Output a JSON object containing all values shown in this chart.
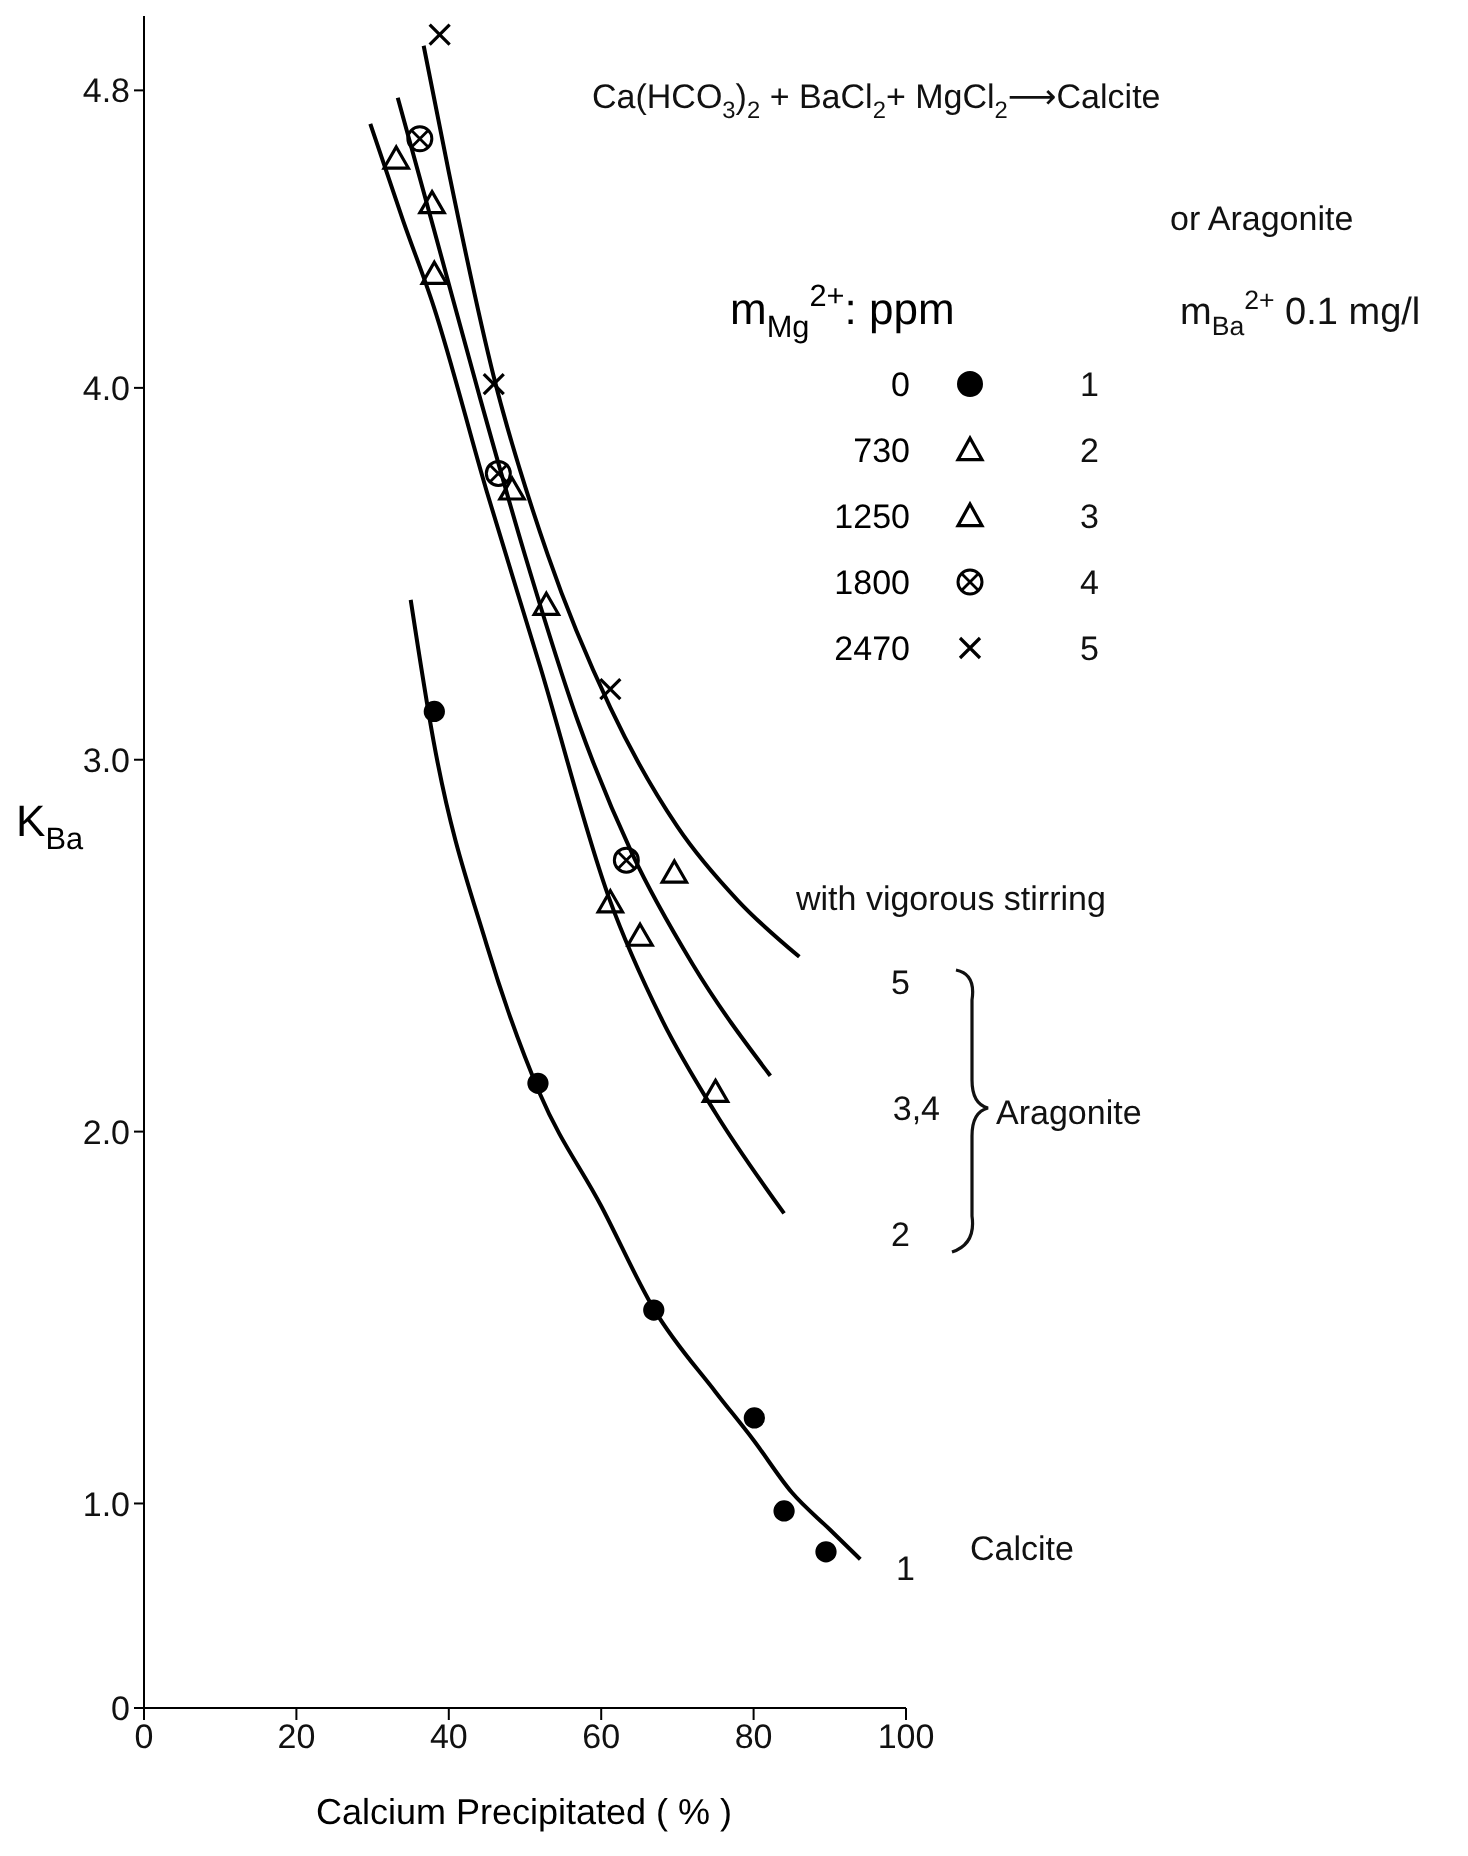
{
  "chart_data": {
    "type": "scatter",
    "xlabel": "Calcium Precipitated ( % )",
    "ylabel": "K$_{Ba}$",
    "legend_title": "m$_{Mg}$$^{2+}$: ppm",
    "xlim": [
      0,
      100
    ],
    "xticks": [
      0,
      20,
      40,
      60,
      80,
      100
    ],
    "ylim": [
      0.45,
      5.0
    ],
    "yticks": [
      {
        "value": 0.45,
        "label": "0"
      },
      {
        "value": 1,
        "label": "1.0"
      },
      {
        "value": 2,
        "label": "2.0"
      },
      {
        "value": 3,
        "label": "3.0"
      },
      {
        "value": 4,
        "label": "4.0"
      },
      4.8
    ],
    "legend": "top right",
    "series": [
      {
        "name": "0",
        "marker": "circle",
        "color": "#000000",
        "x": [
          38.1,
          51.7,
          66.9,
          80.1,
          84,
          89.5
        ],
        "values": [
          3.13,
          2.13,
          1.52,
          1.23,
          0.98,
          0.87
        ]
      },
      {
        "name": "730",
        "marker": "triangle",
        "color": "#000000",
        "x": [
          33.1,
          38.1,
          61.2,
          65.1,
          75
        ],
        "values": [
          4.61,
          4.3,
          2.61,
          2.52,
          2.1
        ]
      },
      {
        "name": "1250",
        "marker": "triangle",
        "color": "#000000",
        "x": [
          37.8,
          48.3,
          52.8,
          69.6
        ],
        "values": [
          4.49,
          3.72,
          3.41,
          2.69
        ]
      },
      {
        "name": "1800",
        "marker": "circle-cross",
        "color": "#000000",
        "x": [
          36.2,
          46.5,
          63.3
        ],
        "values": [
          4.67,
          3.77,
          2.73
        ]
      },
      {
        "name": "2470",
        "marker": "cross",
        "color": "#000000",
        "x": [
          38.8,
          45.9,
          61.2
        ],
        "values": [
          4.95,
          4.01,
          3.19
        ]
      },
      {
        "type": "line",
        "marker": "none",
        "line_style": "solid",
        "color": "#000000",
        "x": [
          35,
          38,
          45,
          52,
          60,
          67,
          75,
          80,
          85,
          90,
          94
        ],
        "values": [
          3.43,
          3.05,
          2.5,
          2.1,
          1.8,
          1.52,
          1.3,
          1.17,
          1.03,
          0.93,
          0.85
        ]
      },
      {
        "type": "line",
        "marker": "none",
        "line_style": "solid",
        "color": "#000000",
        "x": [
          29.7,
          34,
          38,
          45,
          52,
          61,
          68,
          75,
          84
        ],
        "values": [
          4.71,
          4.45,
          4.22,
          3.72,
          3.25,
          2.63,
          2.3,
          2.05,
          1.78
        ]
      },
      {
        "type": "line",
        "marker": "none",
        "line_style": "solid",
        "color": "#000000",
        "x": [
          33.3,
          38,
          44,
          50,
          57,
          64,
          72,
          82.2
        ],
        "values": [
          4.78,
          4.43,
          3.98,
          3.55,
          3.1,
          2.75,
          2.45,
          2.15
        ]
      },
      {
        "type": "line",
        "marker": "none",
        "line_style": "solid",
        "color": "#000000",
        "x": [
          36.7,
          40,
          45.9,
          53,
          61.2,
          70,
          78,
          86
        ],
        "values": [
          4.92,
          4.58,
          4.03,
          3.55,
          3.14,
          2.82,
          2.62,
          2.47
        ]
      }
    ],
    "annotations": [
      "Ca(HCO$_{3}$)$_{2}$ + BaCl$_{2}$+ MgCl$_{2}$⟶Calcite",
      "or Aragonite",
      "m$_{Ba}$$^{2+}$ 0.1 mg/l",
      "1",
      "2",
      "3",
      "4",
      "5",
      "with vigorous stirring",
      "5",
      "3,4",
      "2",
      "Aragonite",
      "1",
      "Calcite"
    ]
  }
}
